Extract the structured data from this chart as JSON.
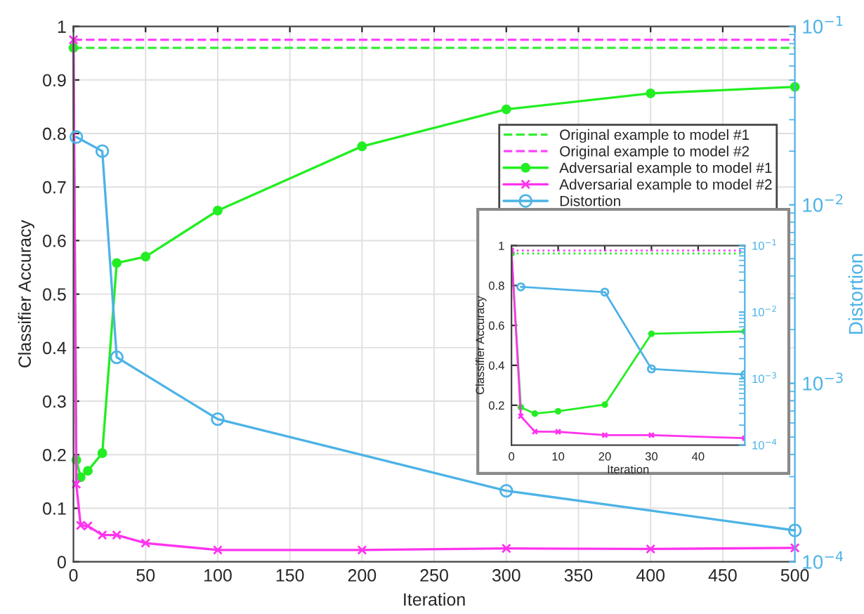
{
  "chart_data": [
    {
      "type": "line",
      "xlabel": "Iteration",
      "ylabel": "Classifier Accuracy",
      "y2label": "Distortion",
      "xlim": [
        0,
        500
      ],
      "xticks": [
        0,
        50,
        100,
        150,
        200,
        250,
        300,
        350,
        400,
        450,
        500
      ],
      "ylim": [
        0,
        1
      ],
      "yticks": [
        0,
        0.1,
        0.2,
        0.3,
        0.4,
        0.5,
        0.6,
        0.7,
        0.8,
        0.9,
        1
      ],
      "y2lim": [
        0.0001,
        0.1
      ],
      "y2ticks": [
        {
          "value": 0.0001,
          "label": "10$^{−4}$"
        },
        {
          "value": 0.001,
          "label": "10$^{−3}$"
        },
        {
          "value": 0.01,
          "label": "10$^{−2}$"
        },
        {
          "value": 0.1,
          "label": "10$^{−1}$"
        }
      ],
      "log": "y2",
      "grid": true,
      "legend": "right",
      "series": [
        {
          "name": "Original example to model #1",
          "color": "#33ee33",
          "line_style": "dashed",
          "marker": "none",
          "x": [
            0,
            500
          ],
          "values": [
            0.96,
            0.96
          ]
        },
        {
          "name": "Original example to model #2",
          "color": "#ff44ff",
          "line_style": "dashed",
          "marker": "none",
          "x": [
            0,
            500
          ],
          "values": [
            0.975,
            0.975
          ]
        },
        {
          "name": "Adversarial example to model #1",
          "color": "#22ee22",
          "line_style": "solid",
          "marker": "circle",
          "x": [
            0,
            2,
            5,
            10,
            20,
            30,
            50,
            100,
            200,
            300,
            400,
            500
          ],
          "values": [
            0.96,
            0.19,
            0.158,
            0.17,
            0.203,
            0.558,
            0.57,
            0.656,
            0.776,
            0.845,
            0.875,
            0.887
          ]
        },
        {
          "name": "Adversarial example to model #2",
          "color": "#ff33ee",
          "line_style": "solid",
          "marker": "cross",
          "x": [
            0,
            2,
            5,
            10,
            20,
            30,
            50,
            100,
            200,
            300,
            400,
            500
          ],
          "values": [
            0.975,
            0.145,
            0.068,
            0.067,
            0.05,
            0.05,
            0.035,
            0.022,
            0.022,
            0.025,
            0.024,
            0.026
          ]
        },
        {
          "name": "Distortion",
          "color": "#4db3e6",
          "line_style": "solid",
          "marker": "circle",
          "axis": "y2",
          "x": [
            2,
            20,
            30,
            100,
            300,
            500
          ],
          "values": [
            0.024,
            0.02,
            0.0014,
            0.00063,
            0.00025,
            0.00015
          ]
        }
      ]
    },
    {
      "type": "line",
      "xlabel": "Iteration",
      "ylabel": "Classifier Accuracy",
      "xlim": [
        0,
        50
      ],
      "xticks": [
        0,
        10,
        20,
        30,
        40
      ],
      "ylim": [
        0,
        1
      ],
      "yticks": [
        0.2,
        0.4,
        0.6,
        0.8,
        1
      ],
      "y2lim": [
        0.0001,
        0.1
      ],
      "y2ticks": [
        {
          "value": 0.0001,
          "label": "10$^{−4}$"
        },
        {
          "value": 0.001,
          "label": "10$^{−3}$"
        },
        {
          "value": 0.01,
          "label": "10$^{−2}$"
        },
        {
          "value": 0.1,
          "label": "10$^{−1}$"
        }
      ],
      "log": "y2",
      "series": [
        {
          "color": "#33ee33",
          "line_style": "dotted",
          "marker": "none",
          "x": [
            0,
            50
          ],
          "values": [
            0.96,
            0.96
          ]
        },
        {
          "color": "#ff44ff",
          "line_style": "dotted",
          "marker": "none",
          "x": [
            0,
            50
          ],
          "values": [
            0.975,
            0.975
          ]
        },
        {
          "color": "#22ee22",
          "line_style": "solid",
          "marker": "circle",
          "x": [
            0,
            2,
            5,
            10,
            20,
            30,
            50
          ],
          "values": [
            0.96,
            0.19,
            0.158,
            0.17,
            0.203,
            0.558,
            0.57
          ]
        },
        {
          "color": "#ff33ee",
          "line_style": "solid",
          "marker": "cross",
          "x": [
            0,
            2,
            5,
            10,
            20,
            30,
            50
          ],
          "values": [
            0.975,
            0.145,
            0.068,
            0.067,
            0.05,
            0.05,
            0.035
          ]
        },
        {
          "color": "#4db3e6",
          "line_style": "solid",
          "marker": "circle",
          "axis": "y2",
          "x": [
            2,
            20,
            30,
            50
          ],
          "values": [
            0.024,
            0.02,
            0.0014,
            0.00115
          ]
        }
      ]
    }
  ]
}
